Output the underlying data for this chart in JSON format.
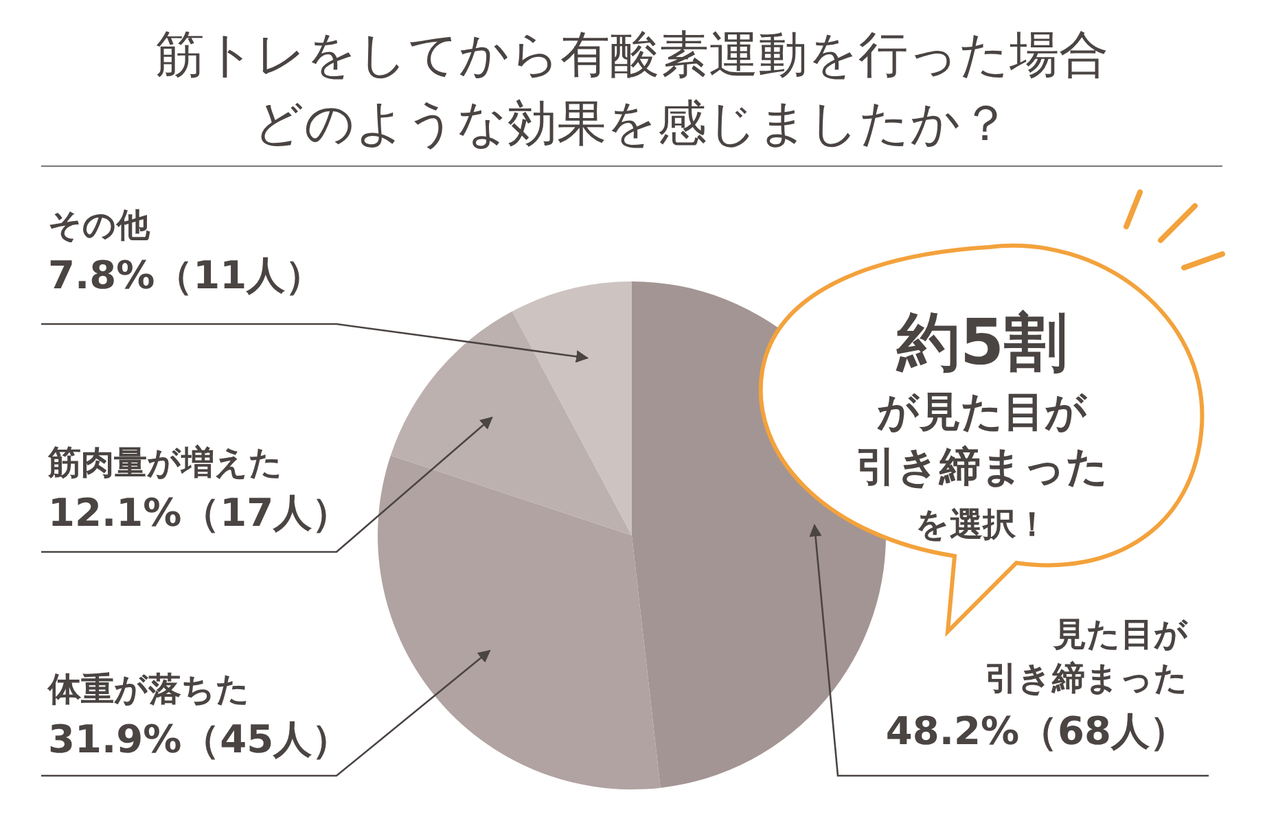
{
  "chart_data": {
    "type": "pie",
    "title": "筋トレをしてから有酸素運動を行った場合どのような効果を感じましたか？",
    "categories": [
      "見た目が引き締まった",
      "体重が落ちた",
      "筋肉量が増えた",
      "その他"
    ],
    "values": [
      48.2,
      31.9,
      12.1,
      7.8
    ],
    "colors": [
      "#a39593",
      "#b0a3a1",
      "#bdb1af",
      "#cdc3c1"
    ],
    "value_labels": [
      "48.2%（68人）",
      "31.9%（45人）",
      "12.1%（17人）",
      "7.8%（11人）"
    ],
    "annotations": [
      "約5割が見た目が引き締まったを選択！"
    ]
  }
}
